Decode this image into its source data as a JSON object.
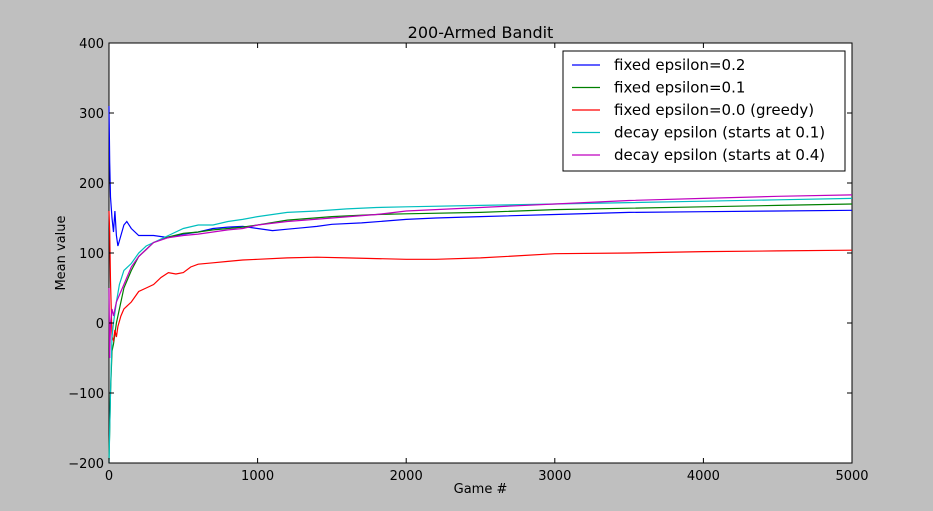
{
  "chart_data": {
    "type": "line",
    "title": "200-Armed Bandit",
    "xlabel": "Game #",
    "ylabel": "Mean value",
    "xlim": [
      0,
      5000
    ],
    "ylim": [
      -200,
      400
    ],
    "xticks": [
      "0",
      "1000",
      "2000",
      "3000",
      "4000",
      "5000"
    ],
    "yticks": [
      "400",
      "300",
      "200",
      "100",
      "0",
      "−100",
      "−200"
    ],
    "grid": false,
    "legend_position": "top-right",
    "series": [
      {
        "name": "fixed epsilon=0.2",
        "color": "#0000ff",
        "points": [
          [
            0,
            310
          ],
          [
            5,
            230
          ],
          [
            10,
            180
          ],
          [
            20,
            150
          ],
          [
            30,
            130
          ],
          [
            40,
            160
          ],
          [
            50,
            125
          ],
          [
            60,
            110
          ],
          [
            80,
            125
          ],
          [
            100,
            140
          ],
          [
            120,
            145
          ],
          [
            150,
            135
          ],
          [
            200,
            125
          ],
          [
            300,
            125
          ],
          [
            400,
            122
          ],
          [
            500,
            127
          ],
          [
            600,
            130
          ],
          [
            700,
            135
          ],
          [
            800,
            137
          ],
          [
            900,
            138
          ],
          [
            1000,
            135
          ],
          [
            1100,
            132
          ],
          [
            1200,
            134
          ],
          [
            1300,
            136
          ],
          [
            1400,
            138
          ],
          [
            1500,
            141
          ],
          [
            1700,
            143
          ],
          [
            2000,
            148
          ],
          [
            2200,
            150
          ],
          [
            2500,
            152
          ],
          [
            3000,
            155
          ],
          [
            3500,
            158
          ],
          [
            4000,
            159
          ],
          [
            4500,
            160
          ],
          [
            5000,
            161
          ]
        ]
      },
      {
        "name": "fixed epsilon=0.1",
        "color": "#008000",
        "points": [
          [
            0,
            -195
          ],
          [
            10,
            -100
          ],
          [
            20,
            -40
          ],
          [
            30,
            -30
          ],
          [
            50,
            0
          ],
          [
            70,
            20
          ],
          [
            100,
            50
          ],
          [
            150,
            75
          ],
          [
            200,
            95
          ],
          [
            250,
            105
          ],
          [
            300,
            115
          ],
          [
            400,
            123
          ],
          [
            500,
            128
          ],
          [
            600,
            130
          ],
          [
            700,
            133
          ],
          [
            800,
            135
          ],
          [
            900,
            137
          ],
          [
            1000,
            140
          ],
          [
            1200,
            147
          ],
          [
            1500,
            152
          ],
          [
            1800,
            155
          ],
          [
            2000,
            156
          ],
          [
            2500,
            158
          ],
          [
            3000,
            162
          ],
          [
            3500,
            164
          ],
          [
            4000,
            166
          ],
          [
            4500,
            168
          ],
          [
            5000,
            170
          ]
        ]
      },
      {
        "name": "fixed epsilon=0.0 (greedy)",
        "color": "#ff0000",
        "points": [
          [
            0,
            160
          ],
          [
            5,
            130
          ],
          [
            10,
            60
          ],
          [
            20,
            -20
          ],
          [
            30,
            -25
          ],
          [
            40,
            -10
          ],
          [
            50,
            -20
          ],
          [
            60,
            -5
          ],
          [
            80,
            10
          ],
          [
            100,
            20
          ],
          [
            150,
            30
          ],
          [
            200,
            45
          ],
          [
            250,
            50
          ],
          [
            300,
            55
          ],
          [
            350,
            65
          ],
          [
            400,
            72
          ],
          [
            450,
            70
          ],
          [
            500,
            72
          ],
          [
            550,
            80
          ],
          [
            600,
            84
          ],
          [
            700,
            86
          ],
          [
            800,
            88
          ],
          [
            900,
            90
          ],
          [
            1000,
            91
          ],
          [
            1200,
            93
          ],
          [
            1400,
            94
          ],
          [
            1600,
            93
          ],
          [
            1800,
            92
          ],
          [
            2000,
            91
          ],
          [
            2200,
            91
          ],
          [
            2500,
            93
          ],
          [
            3000,
            99
          ],
          [
            3500,
            100
          ],
          [
            4000,
            102
          ],
          [
            4500,
            103
          ],
          [
            5000,
            104
          ]
        ]
      },
      {
        "name": "decay epsilon (starts at 0.1)",
        "color": "#00bfbf",
        "points": [
          [
            0,
            -200
          ],
          [
            10,
            -100
          ],
          [
            20,
            -20
          ],
          [
            30,
            0
          ],
          [
            50,
            30
          ],
          [
            70,
            55
          ],
          [
            100,
            75
          ],
          [
            150,
            85
          ],
          [
            200,
            100
          ],
          [
            250,
            110
          ],
          [
            300,
            115
          ],
          [
            400,
            125
          ],
          [
            500,
            135
          ],
          [
            600,
            140
          ],
          [
            700,
            140
          ],
          [
            800,
            145
          ],
          [
            900,
            148
          ],
          [
            1000,
            152
          ],
          [
            1200,
            158
          ],
          [
            1400,
            160
          ],
          [
            1600,
            163
          ],
          [
            1800,
            165
          ],
          [
            2000,
            166
          ],
          [
            2500,
            168
          ],
          [
            3000,
            170
          ],
          [
            3500,
            172
          ],
          [
            4000,
            174
          ],
          [
            4500,
            176
          ],
          [
            5000,
            178
          ]
        ]
      },
      {
        "name": "decay epsilon (starts at 0.4)",
        "color": "#bf00bf",
        "points": [
          [
            0,
            50
          ],
          [
            5,
            -50
          ],
          [
            10,
            0
          ],
          [
            20,
            20
          ],
          [
            30,
            10
          ],
          [
            40,
            20
          ],
          [
            50,
            30
          ],
          [
            70,
            40
          ],
          [
            100,
            55
          ],
          [
            150,
            80
          ],
          [
            200,
            95
          ],
          [
            250,
            105
          ],
          [
            300,
            115
          ],
          [
            400,
            122
          ],
          [
            500,
            125
          ],
          [
            600,
            127
          ],
          [
            700,
            130
          ],
          [
            800,
            133
          ],
          [
            900,
            135
          ],
          [
            1000,
            140
          ],
          [
            1200,
            145
          ],
          [
            1500,
            150
          ],
          [
            1800,
            155
          ],
          [
            2000,
            160
          ],
          [
            2500,
            165
          ],
          [
            3000,
            170
          ],
          [
            3500,
            175
          ],
          [
            4000,
            178
          ],
          [
            4500,
            181
          ],
          [
            5000,
            183
          ]
        ]
      }
    ]
  }
}
